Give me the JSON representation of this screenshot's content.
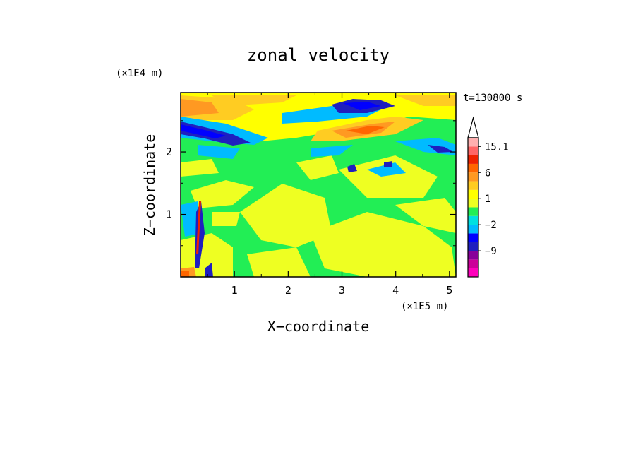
{
  "chart_data": {
    "type": "heatmap",
    "title": "zonal velocity",
    "xlabel": "X−coordinate",
    "ylabel": "Z−coordinate",
    "x_unit": "(×1E5 m)",
    "y_unit": "(×1E4 m)",
    "time_label": "t=130800 s",
    "x_ticks": [
      "1",
      "2",
      "3",
      "4",
      "5"
    ],
    "y_ticks": [
      "1",
      "2"
    ],
    "xlim": [
      0,
      5.12
    ],
    "ylim": [
      0,
      2.95
    ],
    "colorbar": {
      "labels": [
        "15.1",
        "6",
        "1",
        "−2",
        "−9"
      ],
      "label_levels": [
        15.1,
        6,
        1,
        -2,
        -9
      ],
      "levels": [
        -15,
        -12,
        -9,
        -6,
        -4,
        -2,
        -1,
        0,
        1,
        2,
        4,
        6,
        9,
        12,
        15.1
      ],
      "colors": [
        "#ff00bb",
        "#cc0099",
        "#880099",
        "#1f1fbf",
        "#0000ff",
        "#00bbff",
        "#00e0e0",
        "#22ee55",
        "#eeff22",
        "#ffff00",
        "#ffcc22",
        "#ff9922",
        "#ff6600",
        "#ee2200",
        "#ff6666",
        "#ffb0b0"
      ],
      "extend": "max"
    },
    "field_description_values": {
      "background": 0.5,
      "features": [
        {
          "x": 0.35,
          "z": 2.7,
          "value": 5,
          "note": "upper-left orange band"
        },
        {
          "x": 0.8,
          "z": 2.35,
          "value": -9,
          "note": "dark blue band left"
        },
        {
          "x": 3.5,
          "z": 2.6,
          "value": 5,
          "note": "orange jet centre"
        },
        {
          "x": 3.3,
          "z": 2.75,
          "value": -8,
          "note": "upper blue patch"
        },
        {
          "x": 4.8,
          "z": 2.1,
          "value": -9,
          "note": "right blue streak"
        }
      ]
    }
  }
}
